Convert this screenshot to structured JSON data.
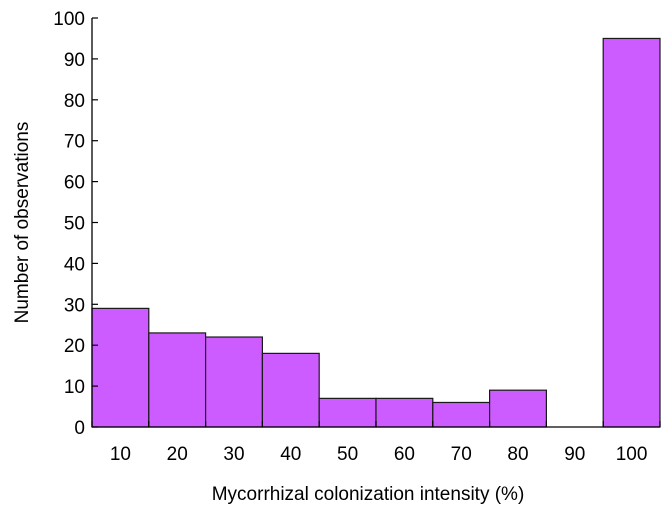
{
  "chart_data": {
    "type": "bar",
    "title": "",
    "xlabel": "Mycorrhizal colonization intensity (%)",
    "ylabel": "Number of observations",
    "categories": [
      "10",
      "20",
      "30",
      "40",
      "50",
      "60",
      "70",
      "80",
      "90",
      "100"
    ],
    "values": [
      29,
      23,
      22,
      18,
      7,
      7,
      6,
      9,
      0,
      95
    ],
    "ylim": [
      0,
      100
    ],
    "yticks": [
      0,
      10,
      20,
      30,
      40,
      50,
      60,
      70,
      80,
      90,
      100
    ],
    "bar_color": "#cc5cff",
    "grid": false,
    "legend": "none"
  }
}
